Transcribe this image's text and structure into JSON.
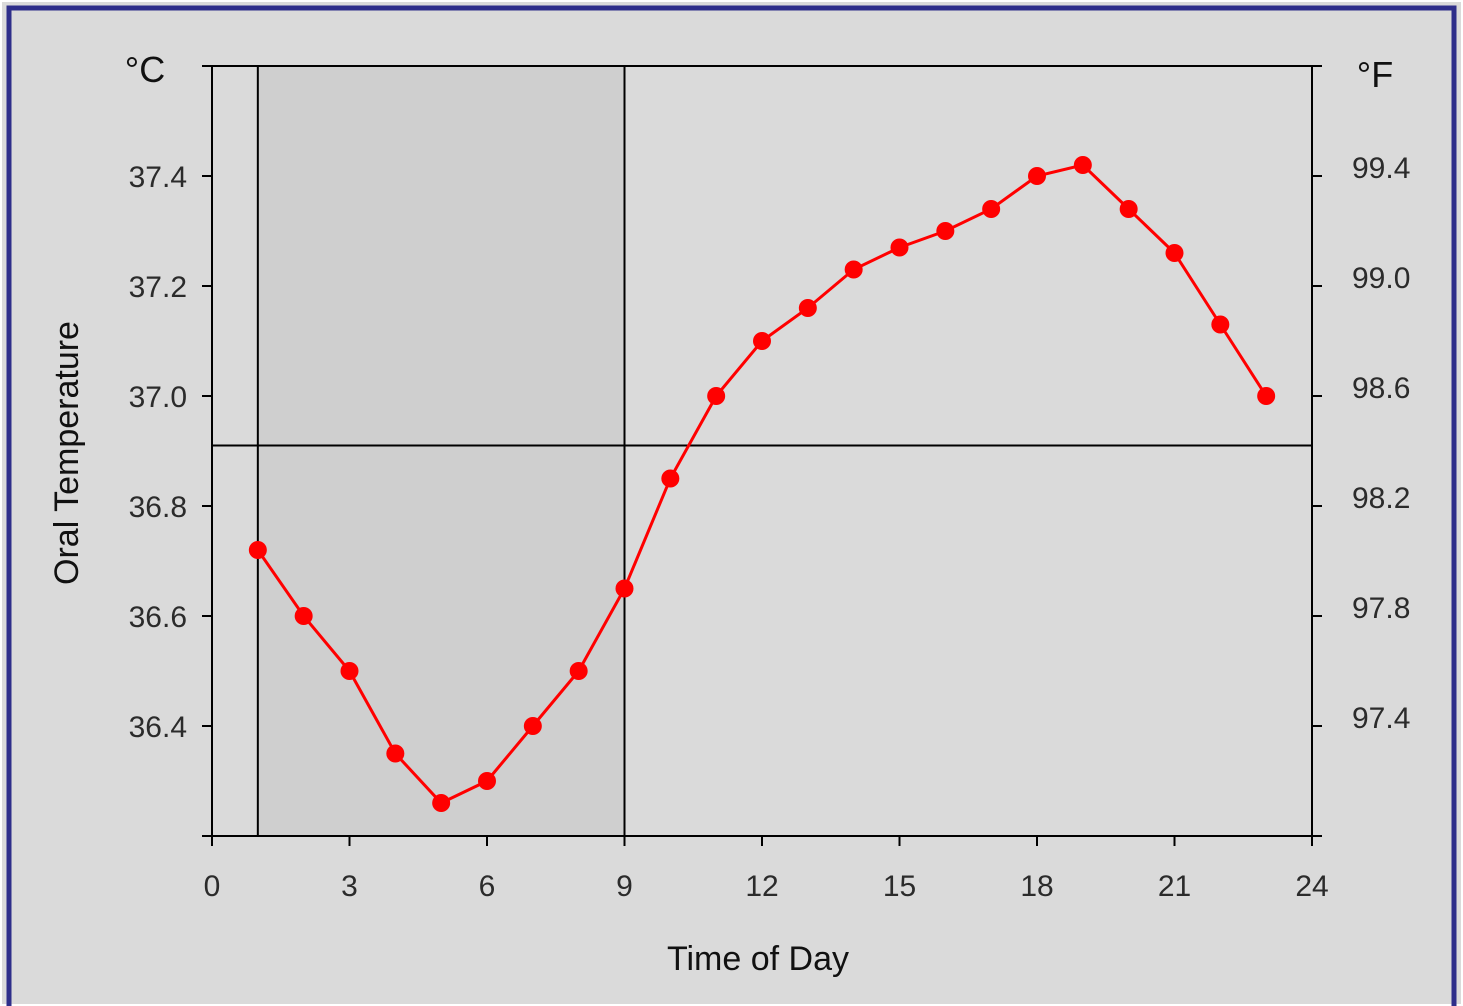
{
  "chart_data": {
    "type": "line",
    "xlabel": "Time of Day",
    "ylabel": "Oral Temperature",
    "y_unit_left": "°C",
    "y_unit_right": "°F",
    "xlim": [
      0,
      24
    ],
    "ylim": [
      36.2,
      37.6
    ],
    "x_ticks": [
      "0",
      "3",
      "6",
      "9",
      "12",
      "15",
      "18",
      "21",
      "24"
    ],
    "x_tick_values": [
      0,
      3,
      6,
      9,
      12,
      15,
      18,
      21,
      24
    ],
    "y_ticks_left": [
      "36.4",
      "36.6",
      "36.8",
      "37.0",
      "37.2",
      "37.4"
    ],
    "y_tick_values_left": [
      36.4,
      36.6,
      36.8,
      37.0,
      37.2,
      37.4
    ],
    "y_ticks_right": [
      "97.4",
      "97.8",
      "98.2",
      "98.6",
      "99.0",
      "99.4"
    ],
    "y_tick_values_right_celsius": [
      36.4,
      36.6,
      36.8,
      37.0,
      37.2,
      37.4
    ],
    "shaded_region_x": [
      1,
      9
    ],
    "vertical_reference_lines_x": [
      1,
      9
    ],
    "horizontal_reference_line_y": 36.91,
    "series": [
      {
        "color": "#ff0000",
        "x": [
          1,
          2,
          3,
          4,
          5,
          6,
          7,
          8,
          9,
          10,
          11,
          12,
          13,
          14,
          15,
          16,
          17,
          18,
          19,
          20,
          21,
          22,
          23
        ],
        "y": [
          36.72,
          36.6,
          36.5,
          36.35,
          36.26,
          36.3,
          36.4,
          36.5,
          36.65,
          36.85,
          37.0,
          37.1,
          37.16,
          37.23,
          37.27,
          37.3,
          37.34,
          37.4,
          37.42,
          37.34,
          37.26,
          37.13,
          37.0
        ]
      }
    ],
    "grid": false,
    "colors": {
      "line": "#ff0000",
      "frame_border": "#2e2e8a",
      "background": "#dadada",
      "shaded": "#cfcfcf",
      "axis": "#000000"
    }
  }
}
